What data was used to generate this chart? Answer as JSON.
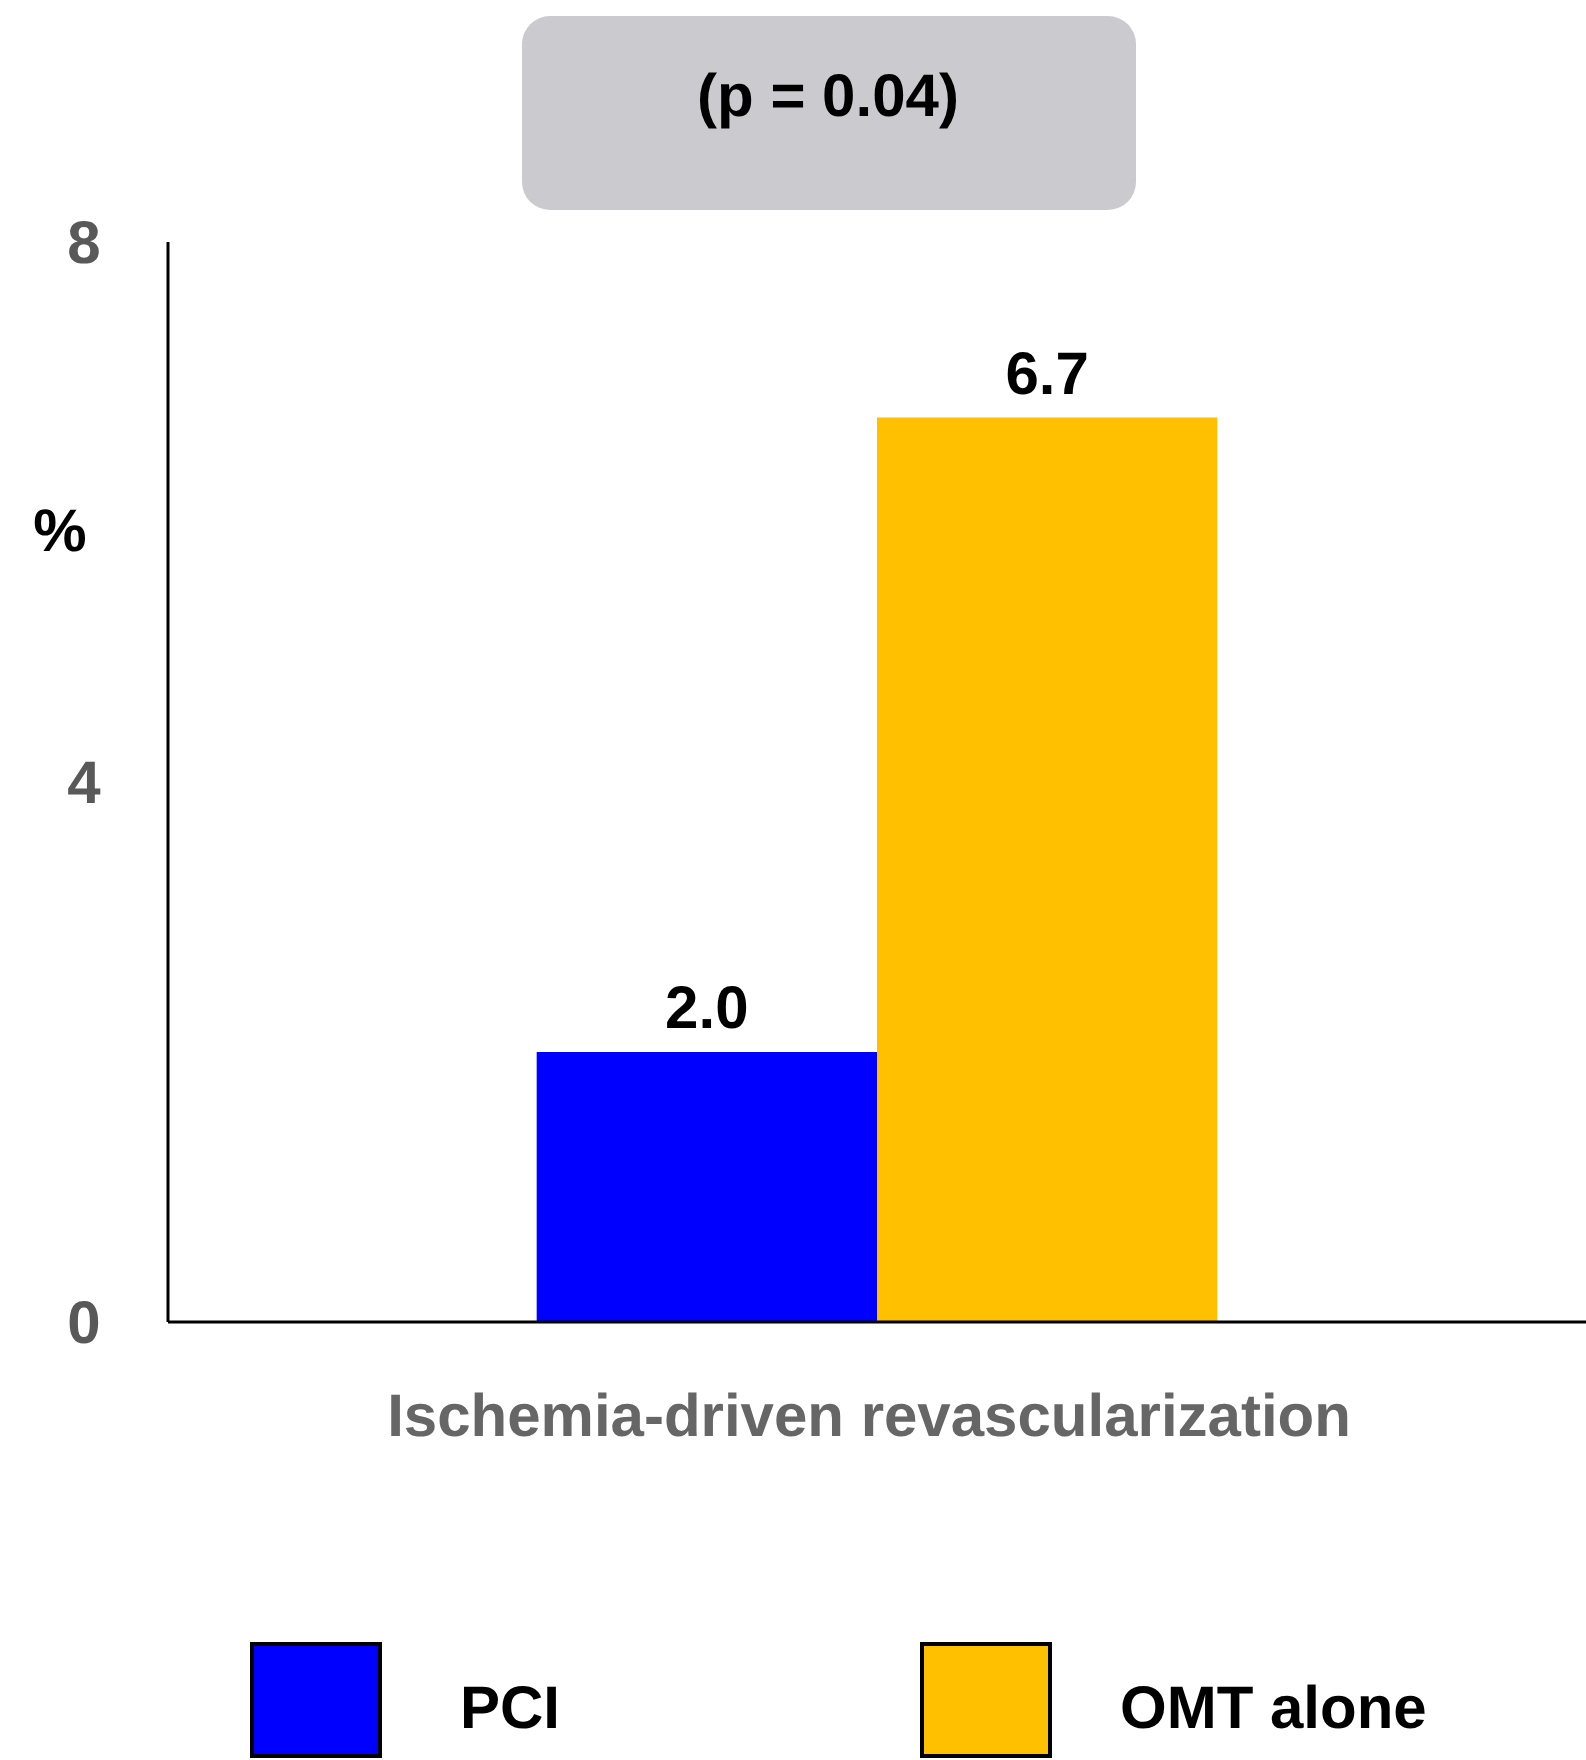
{
  "chart_data": {
    "type": "bar",
    "annotations": [
      "(p = 0.04)"
    ],
    "ylabel": "%",
    "categories": [
      "Ischemia-driven revascularization"
    ],
    "series": [
      {
        "name": "PCI",
        "color": "#0000ff",
        "values": [
          2.0
        ],
        "value_labels": [
          "2.0"
        ]
      },
      {
        "name": "OMT alone",
        "color": "#ffc000",
        "values": [
          6.7
        ],
        "value_labels": [
          "6.7"
        ]
      }
    ],
    "ylim": [
      0,
      8
    ],
    "yticks": [
      0,
      4,
      8
    ],
    "grid": false,
    "legend": "bottom"
  }
}
